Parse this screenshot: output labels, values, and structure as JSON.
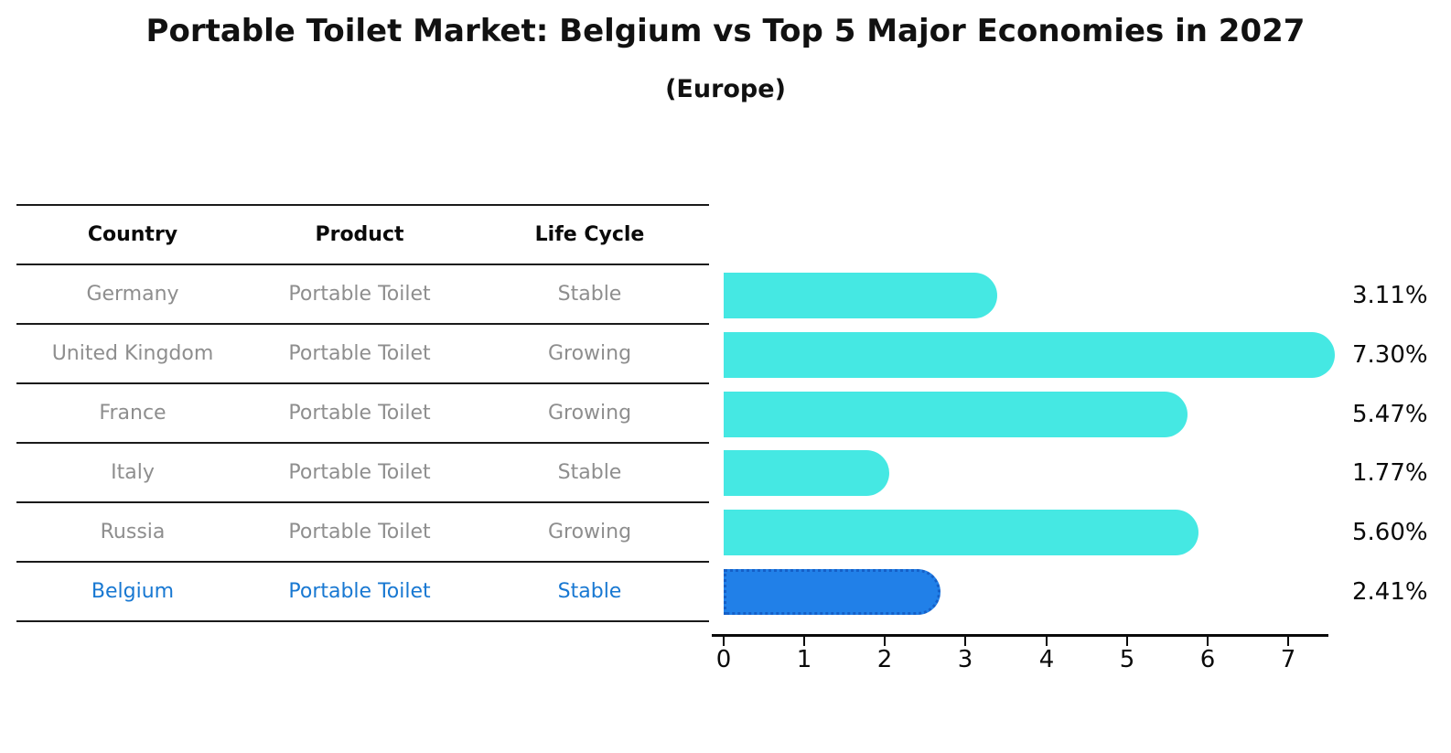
{
  "title": "Portable Toilet Market: Belgium vs Top 5 Major Economies in 2027",
  "subtitle": "(Europe)",
  "table": {
    "headers": [
      "Country",
      "Product",
      "Life Cycle"
    ],
    "rows": [
      {
        "country": "Germany",
        "product": "Portable Toilet",
        "life_cycle": "Stable"
      },
      {
        "country": "United Kingdom",
        "product": "Portable Toilet",
        "life_cycle": "Growing"
      },
      {
        "country": "France",
        "product": "Portable Toilet",
        "life_cycle": "Growing"
      },
      {
        "country": "Italy",
        "product": "Portable Toilet",
        "life_cycle": "Stable"
      },
      {
        "country": "Russia",
        "product": "Portable Toilet",
        "life_cycle": "Growing"
      },
      {
        "country": "Belgium",
        "product": "Portable Toilet",
        "life_cycle": "Stable"
      }
    ],
    "highlight_row": "Belgium"
  },
  "chart_data": {
    "type": "bar",
    "orientation": "horizontal",
    "categories": [
      "Germany",
      "United Kingdom",
      "France",
      "Italy",
      "Russia",
      "Belgium"
    ],
    "values": [
      3.11,
      7.3,
      5.47,
      1.77,
      5.6,
      2.41
    ],
    "value_labels": [
      "3.11%",
      "7.30%",
      "5.47%",
      "1.77%",
      "5.60%",
      "2.41%"
    ],
    "xticks": [
      "0",
      "1",
      "2",
      "3",
      "4",
      "5",
      "6",
      "7"
    ],
    "xlim": [
      0,
      7.5
    ],
    "xlabel": "",
    "ylabel": "",
    "grid": false,
    "legend": "none",
    "bar_color": "#45e8e3",
    "highlight_bar_color": "#2180e8",
    "highlight_border_color": "#1560c8",
    "highlight_index": 5,
    "highlight_text_color": "#1878d2"
  }
}
